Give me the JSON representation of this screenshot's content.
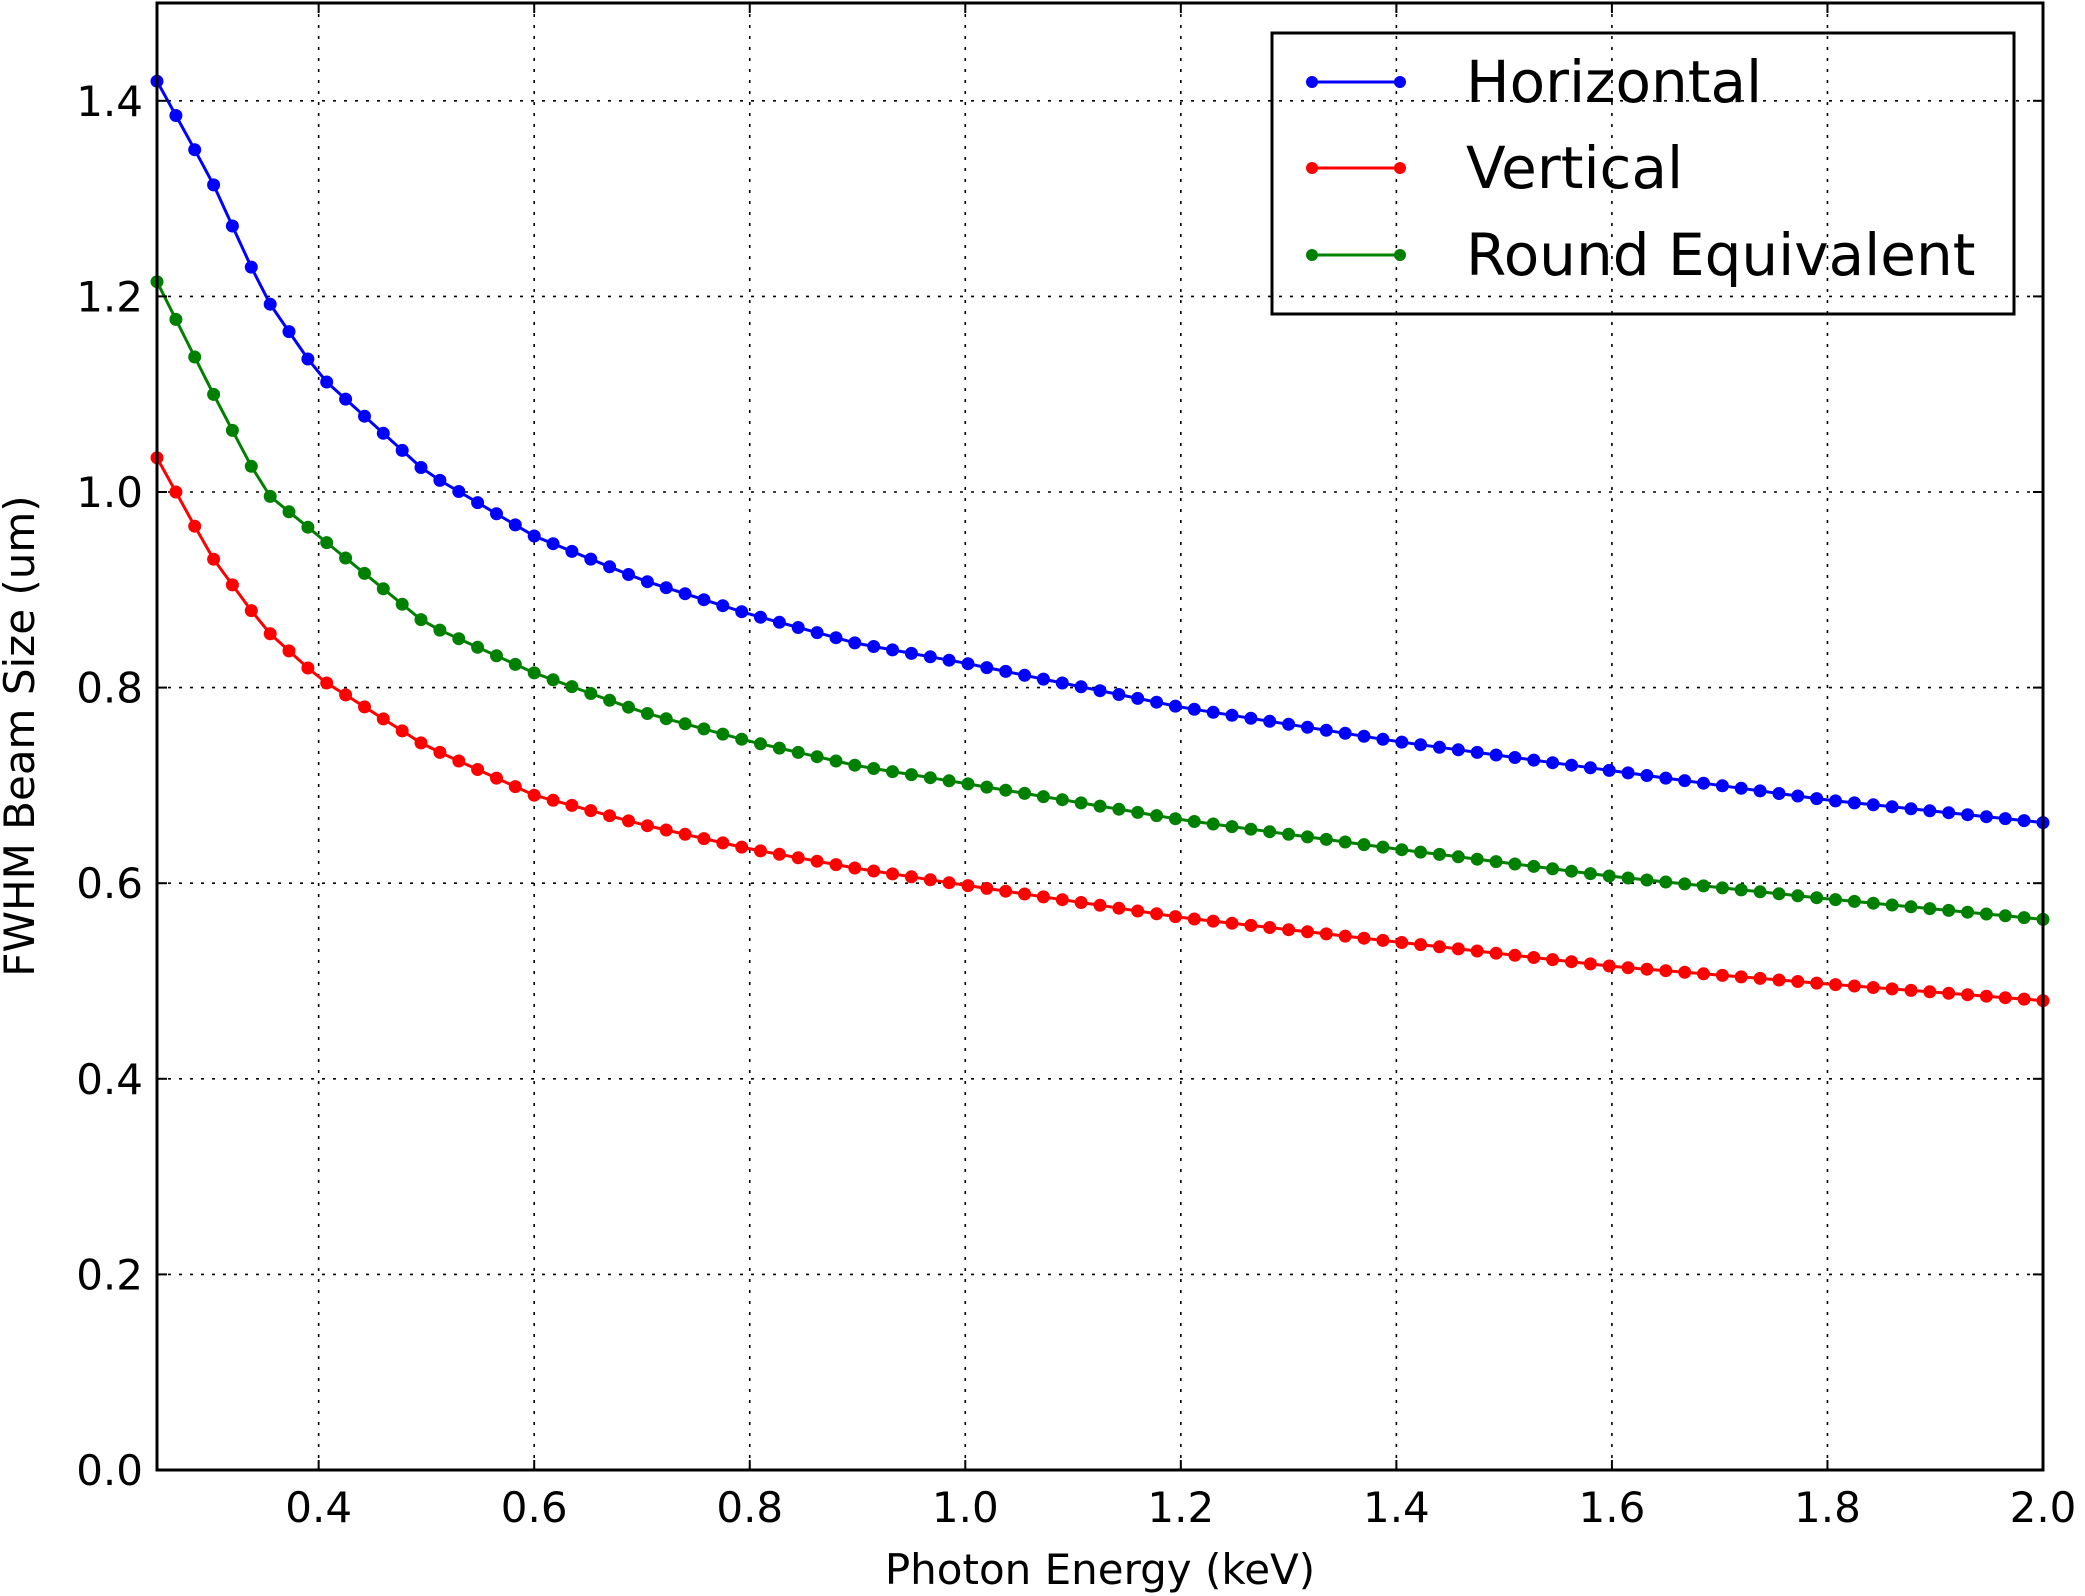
{
  "chart_data": {
    "type": "line",
    "title": "",
    "xlabel": "Photon Energy (keV)",
    "ylabel": "FWHM Beam Size (um)",
    "xlim": [
      0.25,
      2.0
    ],
    "ylim": [
      0.0,
      1.5
    ],
    "xticks": [
      0.4,
      0.6,
      0.8,
      1.0,
      1.2,
      1.4,
      1.6,
      1.8,
      2.0
    ],
    "xtick_labels": [
      "0.4",
      "0.6",
      "0.8",
      "1.0",
      "1.2",
      "1.4",
      "1.6",
      "1.8",
      "2.0"
    ],
    "yticks": [
      0.0,
      0.2,
      0.4,
      0.6,
      0.8,
      1.0,
      1.2,
      1.4
    ],
    "ytick_labels": [
      "0.0",
      "0.2",
      "0.4",
      "0.6",
      "0.8",
      "1.0",
      "1.2",
      "1.4"
    ],
    "grid": true,
    "legend_position": "top-right",
    "x_start": 0.25,
    "x_step": 0.0175,
    "x_count": 101,
    "series": [
      {
        "name": "Horizontal",
        "color": "#0000ff",
        "anchors": [
          [
            0.25,
            1.42
          ],
          [
            0.3,
            1.32
          ],
          [
            0.35,
            1.2
          ],
          [
            0.4,
            1.12
          ],
          [
            0.5,
            1.02
          ],
          [
            0.6,
            0.955
          ],
          [
            0.7,
            0.91
          ],
          [
            0.8,
            0.875
          ],
          [
            0.9,
            0.845
          ],
          [
            1.0,
            0.825
          ],
          [
            1.2,
            0.78
          ],
          [
            1.4,
            0.745
          ],
          [
            1.6,
            0.715
          ],
          [
            1.8,
            0.685
          ],
          [
            2.0,
            0.662
          ]
        ]
      },
      {
        "name": "Vertical",
        "color": "#ff0000",
        "anchors": [
          [
            0.25,
            1.035
          ],
          [
            0.3,
            0.935
          ],
          [
            0.35,
            0.86
          ],
          [
            0.4,
            0.81
          ],
          [
            0.5,
            0.74
          ],
          [
            0.6,
            0.69
          ],
          [
            0.7,
            0.66
          ],
          [
            0.8,
            0.635
          ],
          [
            0.9,
            0.615
          ],
          [
            1.0,
            0.598
          ],
          [
            1.2,
            0.565
          ],
          [
            1.4,
            0.54
          ],
          [
            1.6,
            0.515
          ],
          [
            1.8,
            0.497
          ],
          [
            2.0,
            0.48
          ]
        ]
      },
      {
        "name": "Round Equivalent",
        "color": "#008000",
        "anchors": [
          [
            0.25,
            1.215
          ],
          [
            0.3,
            1.105
          ],
          [
            0.35,
            1.0
          ],
          [
            0.4,
            0.955
          ],
          [
            0.5,
            0.865
          ],
          [
            0.6,
            0.815
          ],
          [
            0.7,
            0.775
          ],
          [
            0.8,
            0.745
          ],
          [
            0.9,
            0.72
          ],
          [
            1.0,
            0.702
          ],
          [
            1.2,
            0.665
          ],
          [
            1.4,
            0.635
          ],
          [
            1.6,
            0.607
          ],
          [
            1.8,
            0.584
          ],
          [
            2.0,
            0.563
          ]
        ]
      }
    ]
  }
}
